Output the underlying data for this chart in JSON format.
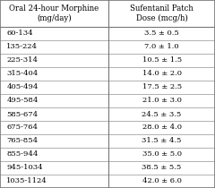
{
  "col1_header": "Oral 24-hour Morphine\n(mg/day)",
  "col2_header": "Sufentanil Patch\nDose (mcg/h)",
  "rows": [
    [
      "60-134",
      "3.5 ± 0.5"
    ],
    [
      "135-224",
      "7.0 ± 1.0"
    ],
    [
      "225-314",
      "10.5 ± 1.5"
    ],
    [
      "315-404",
      "14.0 ± 2.0"
    ],
    [
      "405-494",
      "17.5 ± 2.5"
    ],
    [
      "495-584",
      "21.0 ± 3.0"
    ],
    [
      "585-674",
      "24.5 ± 3.5"
    ],
    [
      "675-764",
      "28.0 ± 4.0"
    ],
    [
      "765-854",
      "31.5 ± 4.5"
    ],
    [
      "855-944",
      "35.0 ± 5.0"
    ],
    [
      "945-1034",
      "38.5 ± 5.5"
    ],
    [
      "1035-1124",
      "42.0 ± 6.0"
    ]
  ],
  "bg_color": "#e8e6e0",
  "cell_bg": "#f5f4f0",
  "border_color": "#777777",
  "header_fontsize": 6.2,
  "cell_fontsize": 6.0,
  "figsize": [
    2.4,
    2.1
  ],
  "dpi": 100,
  "col_split": 0.505,
  "header_rows": 2.0
}
